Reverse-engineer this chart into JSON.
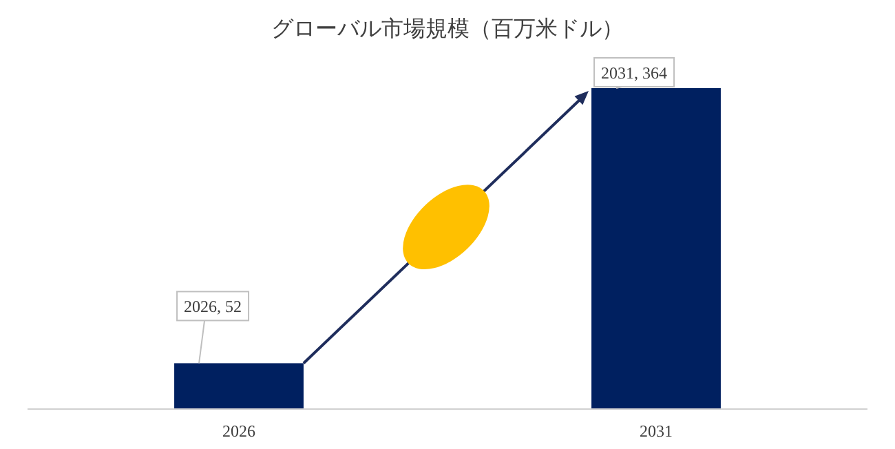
{
  "chart_data": {
    "type": "bar",
    "title": "グローバル市場規模（百万米ドル）",
    "categories": [
      "2026",
      "2031"
    ],
    "values": [
      52,
      364
    ],
    "color": "#002060",
    "value_labels": [
      "2026, 52",
      "2031, 364"
    ]
  }
}
